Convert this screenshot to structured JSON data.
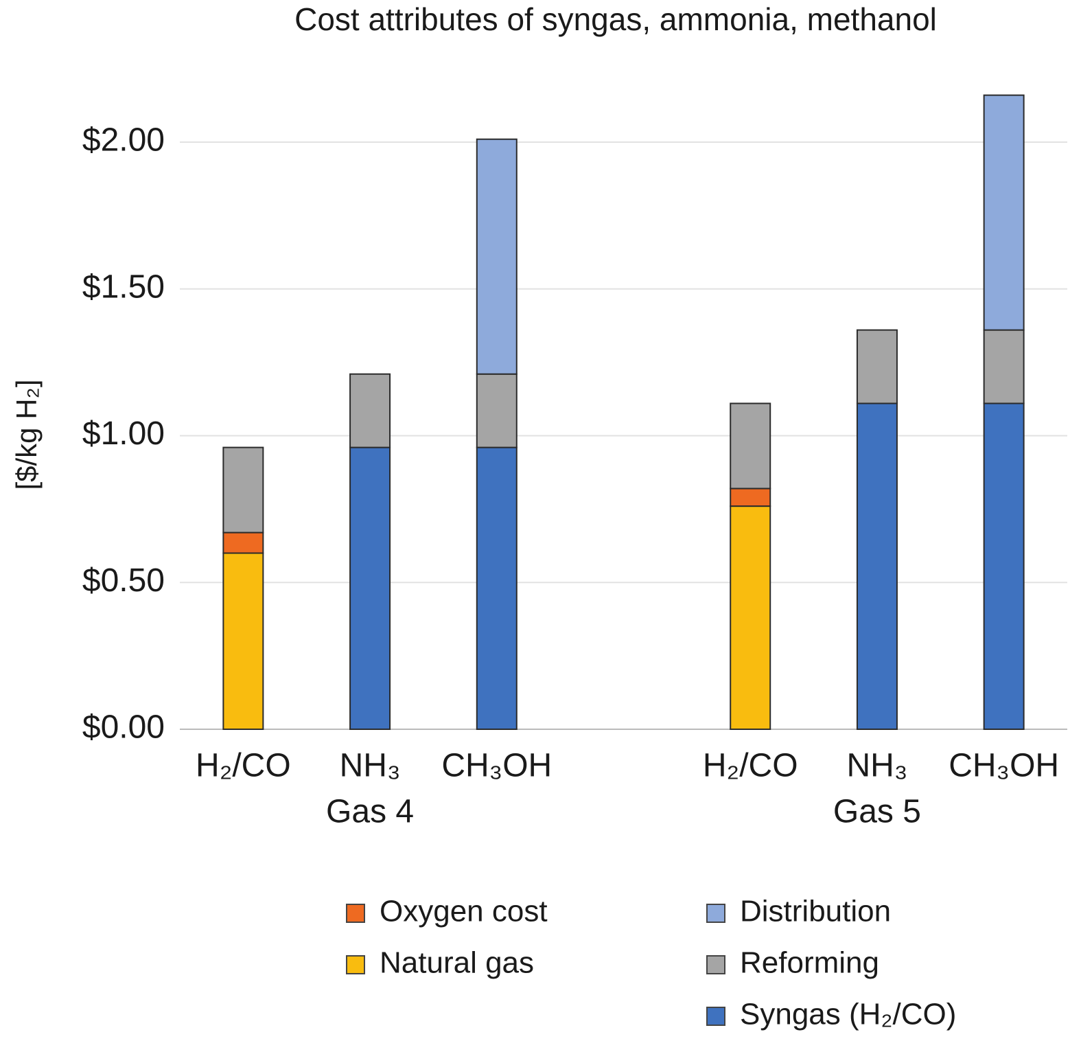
{
  "chart_data": {
    "type": "stacked-bar",
    "title": "Cost attributes of syngas, ammonia, methanol",
    "y_label": "[$/kg H₂]",
    "categories": [
      "H₂/CO",
      "NH₃",
      "CH₃OH",
      null,
      "H₂/CO",
      "NH₃",
      "CH₃OH"
    ],
    "groups": [
      "Gas 4",
      "Gas 5"
    ],
    "series": [
      {
        "name": "Natural gas",
        "color": "#f9bc0f",
        "values": [
          0.6,
          null,
          null,
          null,
          0.76,
          null,
          null
        ]
      },
      {
        "name": "Oxygen cost",
        "color": "#ee6a21",
        "values": [
          0.07,
          null,
          null,
          null,
          0.06,
          null,
          null
        ]
      },
      {
        "name": "Syngas (H₂/CO)",
        "color": "#3f72bf",
        "values": [
          null,
          0.96,
          0.96,
          null,
          null,
          1.11,
          1.11
        ]
      },
      {
        "name": "Reforming",
        "color": "#a5a5a5",
        "values": [
          0.29,
          0.25,
          0.25,
          null,
          0.29,
          0.25,
          0.25
        ]
      },
      {
        "name": "Distribution",
        "color": "#8eaadb",
        "values": [
          null,
          null,
          0.8,
          null,
          null,
          null,
          0.8
        ]
      }
    ],
    "ylim": [
      0,
      2.2
    ],
    "yticks": [
      {
        "value": 0,
        "label": "$0.00"
      },
      {
        "value": 0.5,
        "label": "$0.50"
      },
      {
        "value": 1,
        "label": "$1.00"
      },
      {
        "value": 1.5,
        "label": "$1.50"
      },
      {
        "value": 2,
        "label": "$2.00"
      }
    ],
    "grid": true
  }
}
